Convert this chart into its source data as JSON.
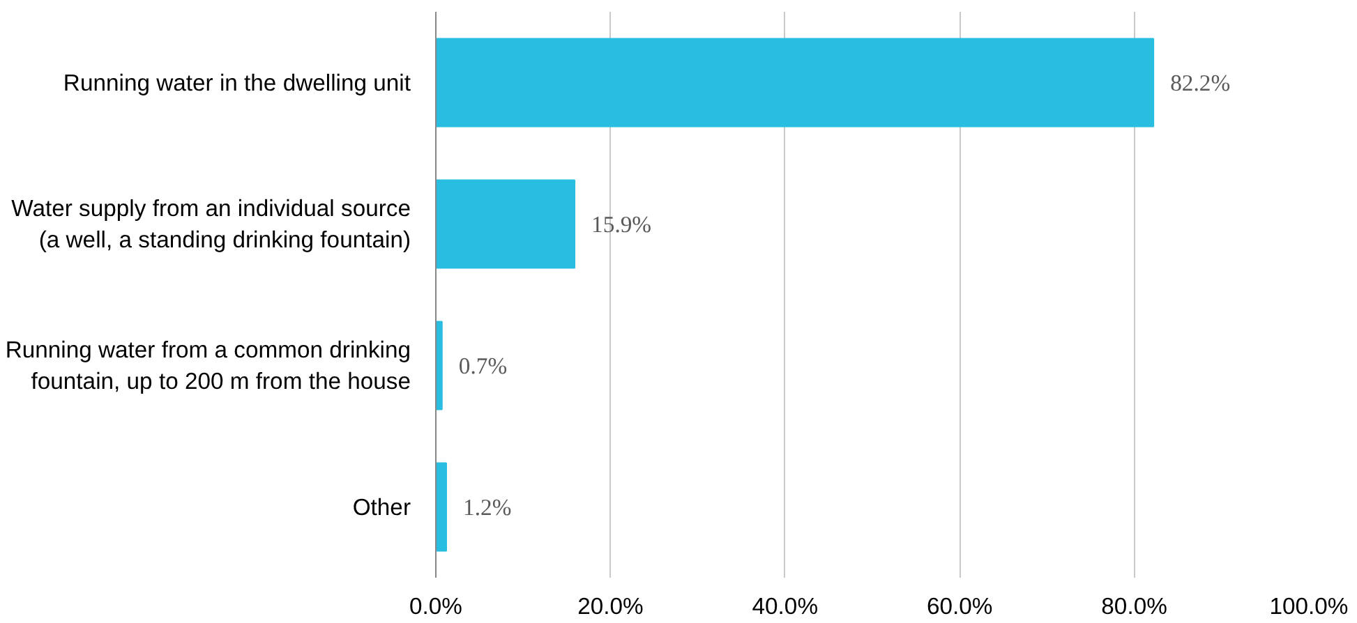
{
  "chart_data": {
    "type": "bar",
    "orientation": "horizontal",
    "categories": [
      "Running water in the dwelling unit",
      "Water supply from an individual source (a well, a standing drinking fountain)",
      "Running water from a common drinking fountain, up to 200 m from the house",
      "Other"
    ],
    "values": [
      82.2,
      15.9,
      0.7,
      1.2
    ],
    "value_labels": [
      "82.2%",
      "15.9%",
      "0.7%",
      "1.2%"
    ],
    "color": "#29bde0",
    "xlim": [
      0,
      100
    ],
    "xticks": [
      {
        "value": 0,
        "label": "0.0%"
      },
      {
        "value": 20,
        "label": "20.0%"
      },
      {
        "value": 40,
        "label": "40.0%"
      },
      {
        "value": 60,
        "label": "60.0%"
      },
      {
        "value": 80,
        "label": "80.0%"
      },
      {
        "value": 100,
        "label": "100.0%"
      }
    ],
    "grid": "x"
  }
}
